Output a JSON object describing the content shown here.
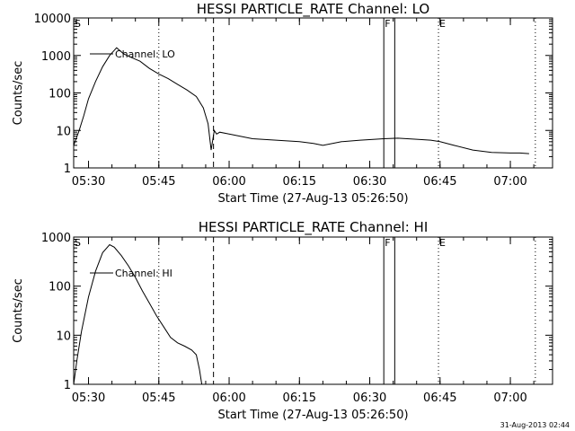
{
  "chart_data": [
    {
      "type": "line",
      "title": "HESSI PARTICLE_RATE Channel: LO",
      "xlabel": "Start Time (27-Aug-13 05:26:50)",
      "ylabel": "Counts/sec",
      "yscale": "log",
      "ylim": [
        1,
        10000
      ],
      "xlim": [
        "05:26:50",
        "07:09:00"
      ],
      "x_ticks": [
        "05:30",
        "05:45",
        "06:00",
        "06:15",
        "06:30",
        "06:45",
        "07:00"
      ],
      "y_ticks": [
        "1",
        "10",
        "100",
        "1000",
        "10000"
      ],
      "legend": {
        "position": "upper-left",
        "entries": [
          "Channel: LO"
        ]
      },
      "series": [
        {
          "name": "Channel: LO",
          "x": [
            "05:26:50",
            "05:28:00",
            "05:29:00",
            "05:30:00",
            "05:31:30",
            "05:33:00",
            "05:34:30",
            "05:36:00",
            "05:37:30",
            "05:39:00",
            "05:41:00",
            "05:43:00",
            "05:45:00",
            "05:47:00",
            "05:49:00",
            "05:51:00",
            "05:53:00",
            "05:54:30",
            "05:55:30",
            "05:56:10",
            "05:56:50",
            "05:57:20",
            "05:58:00",
            "06:00:00",
            "06:05:00",
            "06:10:00",
            "06:15:00",
            "06:18:00",
            "06:20:00",
            "06:24:00",
            "06:28:00",
            "06:33:00",
            "06:36:00",
            "06:40:00",
            "06:43:00",
            "06:45:00",
            "06:48:00",
            "06:52:00",
            "06:56:00",
            "07:00:00",
            "07:02:00",
            "07:04:00"
          ],
          "values": [
            4,
            10,
            25,
            70,
            200,
            500,
            1000,
            1600,
            1100,
            900,
            700,
            450,
            320,
            240,
            170,
            120,
            80,
            40,
            15,
            3,
            10,
            8,
            9,
            8,
            6,
            5.5,
            5,
            4.5,
            4,
            5,
            5.5,
            6,
            6.2,
            5.8,
            5.5,
            5,
            4,
            3,
            2.6,
            2.5,
            2.5,
            2.4
          ]
        }
      ],
      "annotations": {
        "markers": [
          {
            "label": "S",
            "time": "05:26:50",
            "style": "dotted"
          },
          {
            "label": "",
            "time": "05:45:00",
            "style": "dotted"
          },
          {
            "label": "",
            "time": "05:56:40",
            "style": "dashed"
          },
          {
            "label": "F",
            "time": "06:33:00",
            "style": "solid"
          },
          {
            "label": "",
            "time": "06:35:20",
            "style": "solid"
          },
          {
            "label": "E",
            "time": "06:44:40",
            "style": "dotted"
          },
          {
            "label": "",
            "time": "07:05:20",
            "style": "dotted"
          }
        ]
      }
    },
    {
      "type": "line",
      "title": "HESSI PARTICLE_RATE Channel: HI",
      "xlabel": "Start Time (27-Aug-13 05:26:50)",
      "ylabel": "Counts/sec",
      "yscale": "log",
      "ylim": [
        1,
        1000
      ],
      "xlim": [
        "05:26:50",
        "07:09:00"
      ],
      "x_ticks": [
        "05:30",
        "05:45",
        "06:00",
        "06:15",
        "06:30",
        "06:45",
        "07:00"
      ],
      "y_ticks": [
        "1",
        "10",
        "100",
        "1000"
      ],
      "legend": {
        "position": "upper-left",
        "entries": [
          "Channel: HI"
        ]
      },
      "series": [
        {
          "name": "Channel: HI",
          "x": [
            "05:26:50",
            "05:27:30",
            "05:28:30",
            "05:30:00",
            "05:31:30",
            "05:33:00",
            "05:34:30",
            "05:35:30",
            "05:37:00",
            "05:38:30",
            "05:40:00",
            "05:41:30",
            "05:43:00",
            "05:44:30",
            "05:46:00",
            "05:47:30",
            "05:49:00",
            "05:50:30",
            "05:52:00",
            "05:53:00",
            "05:53:40",
            "05:54:10"
          ],
          "values": [
            1,
            3,
            12,
            60,
            200,
            480,
            700,
            620,
            420,
            260,
            150,
            80,
            45,
            25,
            15,
            9,
            7,
            6,
            5,
            4,
            2,
            1
          ]
        }
      ],
      "annotations": {
        "markers": [
          {
            "label": "S",
            "time": "05:26:50",
            "style": "dotted"
          },
          {
            "label": "",
            "time": "05:45:00",
            "style": "dotted"
          },
          {
            "label": "",
            "time": "05:56:40",
            "style": "dashed"
          },
          {
            "label": "F",
            "time": "06:33:00",
            "style": "solid"
          },
          {
            "label": "",
            "time": "06:35:20",
            "style": "solid"
          },
          {
            "label": "E",
            "time": "06:44:40",
            "style": "dotted"
          },
          {
            "label": "",
            "time": "07:05:20",
            "style": "dotted"
          }
        ]
      }
    }
  ],
  "footer": {
    "timestamp": "31-Aug-2013 02:44"
  }
}
